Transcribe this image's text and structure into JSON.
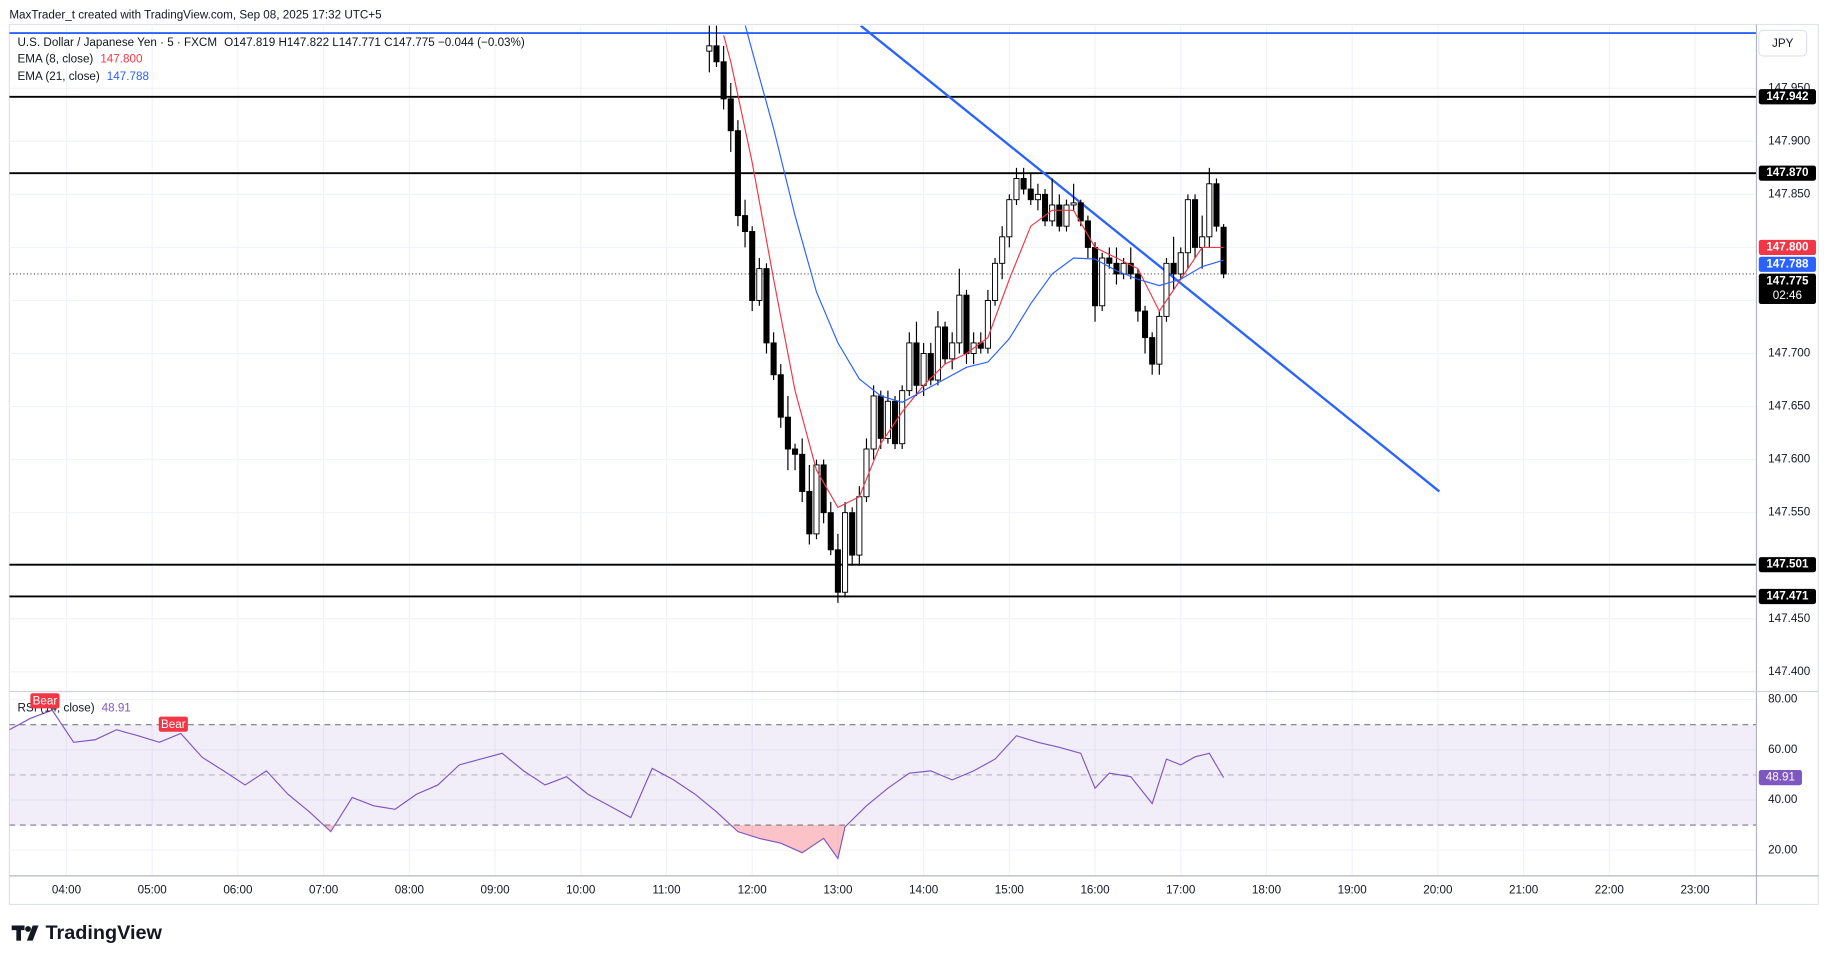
{
  "chart_data": [
    {
      "type": "candlestick",
      "subtitle": "MaxTrader_t created with TradingView.com, Sep 08, 2025 17:32 UTC+5",
      "title": "U.S. Dollar / Japanese Yen · 5 · FXCM",
      "ohlc_text": "O147.819 H147.822 L147.771 C147.775 −0.044 (−0.03%)",
      "unit": "JPY",
      "up_color": "#ffffff",
      "down_color": "#000000",
      "x": [
        "11:30",
        "11:35",
        "11:40",
        "11:45",
        "11:50",
        "11:55",
        "12:00",
        "12:05",
        "12:10",
        "12:15",
        "12:20",
        "12:25",
        "12:30",
        "12:35",
        "12:40",
        "12:45",
        "12:50",
        "12:55",
        "13:00",
        "13:05",
        "13:10",
        "13:15",
        "13:20",
        "13:25",
        "13:30",
        "13:35",
        "13:40",
        "13:45",
        "13:50",
        "13:55",
        "14:00",
        "14:05",
        "14:10",
        "14:15",
        "14:20",
        "14:25",
        "14:30",
        "14:35",
        "14:40",
        "14:45",
        "14:50",
        "14:55",
        "15:00",
        "15:05",
        "15:10",
        "15:15",
        "15:20",
        "15:25",
        "15:30",
        "15:35",
        "15:40",
        "15:45",
        "15:50",
        "15:55",
        "16:00",
        "16:05",
        "16:10",
        "16:15",
        "16:20",
        "16:25",
        "16:30",
        "16:35",
        "16:40",
        "16:45",
        "16:50",
        "16:55",
        "17:00",
        "17:05",
        "17:10",
        "17:15",
        "17:20",
        "17:25",
        "17:30"
      ],
      "open": [
        147.985,
        147.99,
        147.975,
        147.94,
        147.91,
        147.83,
        147.815,
        147.75,
        147.78,
        147.71,
        147.68,
        147.64,
        147.61,
        147.605,
        147.57,
        147.53,
        147.595,
        147.55,
        147.515,
        147.475,
        147.55,
        147.51,
        147.565,
        147.61,
        147.66,
        147.62,
        147.655,
        147.615,
        147.665,
        147.71,
        147.67,
        147.7,
        147.675,
        147.725,
        147.695,
        147.71,
        147.755,
        147.7,
        147.71,
        147.705,
        147.75,
        147.785,
        147.81,
        147.845,
        147.865,
        147.855,
        147.845,
        147.85,
        147.825,
        147.84,
        147.82,
        147.84,
        147.842,
        147.825,
        147.8,
        147.745,
        147.79,
        147.785,
        147.775,
        147.785,
        147.775,
        147.74,
        147.715,
        147.69,
        147.735,
        147.785,
        147.775,
        147.795,
        147.845,
        147.8,
        147.81,
        147.86,
        147.819
      ],
      "high": [
        148.01,
        148.01,
        147.99,
        147.955,
        147.92,
        147.845,
        147.82,
        147.79,
        147.785,
        147.72,
        147.69,
        147.66,
        147.615,
        147.62,
        147.595,
        147.6,
        147.6,
        147.56,
        147.53,
        147.56,
        147.555,
        147.575,
        147.62,
        147.67,
        147.665,
        147.665,
        147.66,
        147.67,
        147.72,
        147.73,
        147.71,
        147.71,
        147.74,
        147.73,
        147.72,
        147.78,
        147.76,
        147.72,
        147.72,
        147.76,
        147.79,
        147.82,
        147.85,
        147.875,
        147.875,
        147.87,
        147.86,
        147.855,
        147.865,
        147.85,
        147.845,
        147.86,
        147.845,
        147.83,
        147.805,
        147.795,
        147.8,
        147.8,
        147.79,
        147.8,
        147.78,
        147.745,
        147.72,
        147.74,
        147.79,
        147.81,
        147.8,
        147.85,
        147.85,
        147.83,
        147.875,
        147.865,
        147.822
      ],
      "low": [
        147.965,
        147.97,
        147.93,
        147.89,
        147.82,
        147.8,
        147.74,
        147.745,
        147.7,
        147.675,
        147.63,
        147.59,
        147.59,
        147.56,
        147.52,
        147.525,
        147.54,
        147.51,
        147.465,
        147.47,
        147.5,
        147.5,
        147.56,
        147.6,
        147.61,
        147.615,
        147.61,
        147.61,
        147.66,
        147.66,
        147.66,
        147.67,
        147.67,
        147.69,
        147.685,
        147.7,
        147.69,
        147.69,
        147.7,
        147.7,
        147.745,
        147.77,
        147.8,
        147.84,
        147.85,
        147.84,
        147.835,
        147.82,
        147.82,
        147.815,
        147.815,
        147.835,
        147.82,
        147.79,
        147.73,
        147.74,
        147.78,
        147.765,
        147.77,
        147.77,
        147.73,
        147.7,
        147.68,
        147.68,
        147.73,
        147.76,
        147.77,
        147.78,
        147.79,
        147.78,
        147.8,
        147.815,
        147.771
      ],
      "close": [
        147.99,
        147.975,
        147.94,
        147.91,
        147.83,
        147.815,
        147.75,
        147.78,
        147.71,
        147.68,
        147.64,
        147.61,
        147.605,
        147.57,
        147.53,
        147.595,
        147.55,
        147.515,
        147.475,
        147.55,
        147.51,
        147.565,
        147.61,
        147.66,
        147.62,
        147.655,
        147.615,
        147.665,
        147.71,
        147.67,
        147.7,
        147.675,
        147.725,
        147.695,
        147.71,
        147.755,
        147.7,
        147.71,
        147.705,
        147.75,
        147.785,
        147.81,
        147.845,
        147.865,
        147.855,
        147.845,
        147.85,
        147.825,
        147.84,
        147.82,
        147.84,
        147.842,
        147.825,
        147.8,
        147.745,
        147.79,
        147.785,
        147.775,
        147.785,
        147.775,
        147.74,
        147.715,
        147.69,
        147.735,
        147.785,
        147.775,
        147.795,
        147.845,
        147.8,
        147.81,
        147.86,
        147.82,
        147.775
      ],
      "series": [
        {
          "name": "EMA (8, close)",
          "color": "#f23645",
          "last_label": "147.800",
          "x": [
            "11:40",
            "11:45",
            "12:00",
            "12:15",
            "12:30",
            "12:45",
            "13:00",
            "13:15",
            "13:30",
            "13:45",
            "14:00",
            "14:15",
            "14:30",
            "14:45",
            "15:00",
            "15:15",
            "15:30",
            "15:45",
            "16:00",
            "16:15",
            "16:30",
            "16:45",
            "17:00",
            "17:15",
            "17:30"
          ],
          "values": [
            148.0,
            147.975,
            147.88,
            147.77,
            147.665,
            147.59,
            147.555,
            147.565,
            147.615,
            147.645,
            147.67,
            147.69,
            147.7,
            147.715,
            147.77,
            147.82,
            147.835,
            147.835,
            147.8,
            147.79,
            147.78,
            147.74,
            147.77,
            147.8,
            147.8
          ]
        },
        {
          "name": "EMA (21, close)",
          "color": "#2962ff",
          "last_label": "147.788",
          "x": [
            "11:55",
            "12:00",
            "12:15",
            "12:30",
            "12:45",
            "13:00",
            "13:15",
            "13:30",
            "13:45",
            "14:00",
            "14:15",
            "14:30",
            "14:45",
            "15:00",
            "15:15",
            "15:30",
            "15:45",
            "16:00",
            "16:15",
            "16:30",
            "16:45",
            "17:00",
            "17:15",
            "17:30"
          ],
          "values": [
            148.01,
            147.985,
            147.912,
            147.83,
            147.758,
            147.71,
            147.676,
            147.66,
            147.654,
            147.665,
            147.676,
            147.687,
            147.692,
            147.714,
            147.747,
            147.775,
            147.79,
            147.789,
            147.778,
            147.77,
            147.764,
            147.77,
            147.782,
            147.788
          ]
        }
      ],
      "last_price": {
        "value": 147.775,
        "label": "147.775",
        "countdown": "02:46"
      },
      "levels": [
        {
          "value": 148.002,
          "color": "#2962ff"
        },
        {
          "value": 147.942,
          "label": "147.942",
          "color": "#000000"
        },
        {
          "value": 147.87,
          "label": "147.870",
          "color": "#000000"
        },
        {
          "value": 147.501,
          "label": "147.501",
          "color": "#000000"
        },
        {
          "value": 147.471,
          "label": "147.471",
          "color": "#000000"
        }
      ],
      "trendlines": [
        {
          "x": [
            "13:16",
            "20:01"
          ],
          "y": [
            148.009,
            147.57
          ],
          "color": "#2962ff"
        }
      ],
      "xlim": [
        "03:20",
        "23:43"
      ],
      "xticks": [
        "04:00",
        "05:00",
        "06:00",
        "07:00",
        "08:00",
        "09:00",
        "10:00",
        "11:00",
        "12:00",
        "13:00",
        "14:00",
        "15:00",
        "16:00",
        "17:00",
        "18:00",
        "19:00",
        "20:00",
        "21:00",
        "22:00",
        "23:00"
      ],
      "ylim": [
        147.382,
        148.009
      ],
      "yticks": [
        {
          "value": 147.4,
          "label": "147.400"
        },
        {
          "value": 147.45,
          "label": "147.450"
        },
        {
          "value": 147.5,
          "label": "147.500"
        },
        {
          "value": 147.55,
          "label": "147.550"
        },
        {
          "value": 147.6,
          "label": "147.600"
        },
        {
          "value": 147.65,
          "label": "147.650"
        },
        {
          "value": 147.7,
          "label": "147.700"
        },
        {
          "value": 147.75,
          "label": "147.750"
        },
        {
          "value": 147.8,
          "label": "147.800"
        },
        {
          "value": 147.85,
          "label": "147.850"
        },
        {
          "value": 147.9,
          "label": "147.900"
        },
        {
          "value": 147.95,
          "label": "147.950"
        }
      ],
      "grid": true
    },
    {
      "type": "line",
      "series": [
        {
          "name": "RSI (14, close)",
          "color": "#7e57c2",
          "last_label": "48.91",
          "x": [
            "03:20",
            "03:35",
            "03:50",
            "04:05",
            "04:20",
            "04:35",
            "04:50",
            "05:05",
            "05:20",
            "05:35",
            "05:50",
            "06:05",
            "06:20",
            "06:35",
            "06:50",
            "07:05",
            "07:20",
            "07:35",
            "07:50",
            "08:05",
            "08:20",
            "08:35",
            "08:50",
            "09:05",
            "09:20",
            "09:35",
            "09:50",
            "10:05",
            "10:20",
            "10:35",
            "10:50",
            "11:05",
            "11:20",
            "11:35",
            "11:50",
            "12:05",
            "12:20",
            "12:35",
            "12:50",
            "13:00",
            "13:05",
            "13:20",
            "13:35",
            "13:50",
            "14:05",
            "14:20",
            "14:35",
            "14:50",
            "15:05",
            "15:20",
            "15:35",
            "15:50",
            "16:00",
            "16:10",
            "16:25",
            "16:40",
            "16:50",
            "17:00",
            "17:10",
            "17:20",
            "17:30"
          ],
          "values": [
            68,
            72.6,
            75.8,
            63,
            64,
            68,
            65.6,
            63,
            66.5,
            57,
            51.6,
            46,
            51.6,
            42.3,
            35.3,
            27.4,
            41,
            37.7,
            36.3,
            42.3,
            46,
            54,
            56.3,
            58.6,
            51.6,
            46,
            49.3,
            42.3,
            37.7,
            33,
            52.6,
            48,
            42.3,
            35.3,
            27.4,
            24.7,
            22.8,
            19,
            24.7,
            16.7,
            29.3,
            37.7,
            44.7,
            50.7,
            51.6,
            48,
            51.6,
            56.3,
            65.6,
            63,
            61,
            58.6,
            44.7,
            50.7,
            49.3,
            38.6,
            56.3,
            54,
            57.2,
            58.6,
            48.91
          ]
        }
      ],
      "bands": [
        30,
        70
      ],
      "midline": 50,
      "annotations": [
        {
          "text": "Bear"
        },
        {
          "text": "Bear"
        }
      ],
      "ylim": [
        10,
        83
      ],
      "yticks": [
        {
          "value": 20,
          "label": "20.00"
        },
        {
          "value": 40,
          "label": "40.00"
        },
        {
          "value": 60,
          "label": "60.00"
        },
        {
          "value": 80,
          "label": "80.00"
        }
      ],
      "grid": true
    }
  ],
  "footer": {
    "brand": "TradingView"
  }
}
